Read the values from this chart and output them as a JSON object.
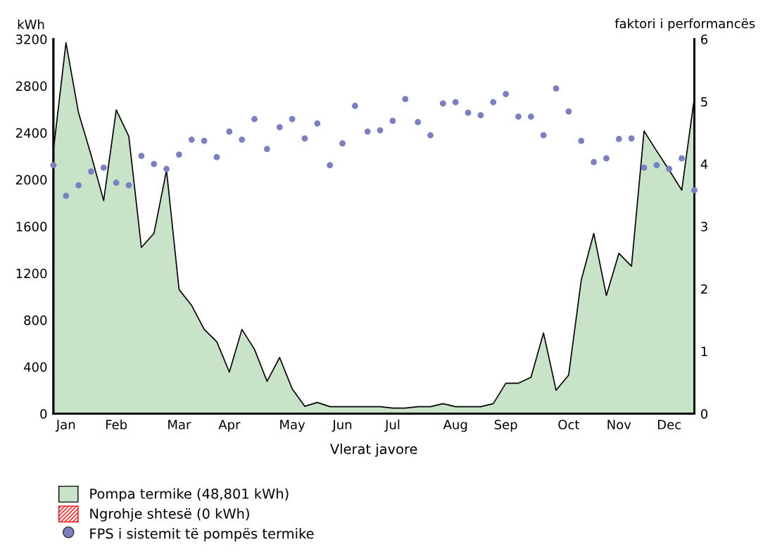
{
  "chart_data": {
    "type": "area",
    "xlabel": "Vlerat javore",
    "ylabel": "kWh",
    "y2label": "faktori i performancës",
    "categories": [
      null,
      "Jan",
      null,
      null,
      null,
      "Feb",
      null,
      null,
      null,
      null,
      "Mar",
      null,
      null,
      null,
      "Apr",
      null,
      null,
      null,
      null,
      "May",
      null,
      null,
      null,
      "Jun",
      null,
      null,
      null,
      "Jul",
      null,
      null,
      null,
      null,
      "Aug",
      null,
      null,
      null,
      "Sep",
      null,
      null,
      null,
      null,
      "Oct",
      null,
      null,
      null,
      "Nov",
      null,
      null,
      null,
      "Dec",
      null,
      null
    ],
    "ylim": [
      0,
      3200
    ],
    "yticks": [
      0,
      400,
      800,
      1200,
      1600,
      2000,
      2400,
      2800,
      3200
    ],
    "y2lim": [
      0,
      6
    ],
    "y2ticks": [
      0,
      1,
      2,
      3,
      4,
      5,
      6
    ],
    "legend": "bottom",
    "series": [
      {
        "name": "Pompa termike (48,801 kWh)",
        "color": "#c8e3c8",
        "values": [
          2250,
          3170,
          2570,
          2210,
          1820,
          2595,
          2370,
          1420,
          1540,
          2080,
          1060,
          925,
          720,
          615,
          355,
          720,
          550,
          276,
          480,
          212,
          63,
          96,
          60,
          60,
          60,
          60,
          60,
          48,
          48,
          60,
          60,
          85,
          60,
          60,
          60,
          85,
          260,
          260,
          310,
          690,
          200,
          330,
          1140,
          1540,
          1010,
          1370,
          1260,
          2415,
          2245,
          2080,
          1910,
          2700
        ]
      },
      {
        "name": "Ngrohje shtesë (0 kWh)",
        "color": "#ff0000",
        "values": [
          null,
          null,
          null,
          null,
          null,
          null,
          null,
          null,
          null,
          null,
          null,
          null,
          null,
          null,
          null,
          null,
          null,
          null,
          null,
          null,
          null,
          null,
          null,
          null,
          null,
          null,
          null,
          null,
          null,
          null,
          null,
          null,
          null,
          null,
          null,
          null,
          null,
          null,
          null,
          null,
          null,
          null,
          null,
          null,
          null,
          null,
          null,
          null,
          null,
          null,
          null,
          null
        ]
      },
      {
        "name": "FPS i sistemit të pompës termike",
        "type": "scatter",
        "axis": "y2",
        "marker": "circle",
        "color": "#7b7fc4",
        "values": [
          3.98,
          3.49,
          3.66,
          3.88,
          3.94,
          3.7,
          3.66,
          4.13,
          4.0,
          3.92,
          4.15,
          4.39,
          4.37,
          4.11,
          4.52,
          4.39,
          4.72,
          4.24,
          4.59,
          4.72,
          4.41,
          4.65,
          3.98,
          4.33,
          4.93,
          4.52,
          4.54,
          4.69,
          5.04,
          4.67,
          4.46,
          4.97,
          4.99,
          4.82,
          4.78,
          4.99,
          5.12,
          4.76,
          4.76,
          4.46,
          5.21,
          4.84,
          4.37,
          4.03,
          4.09,
          4.4,
          4.41,
          3.94,
          3.98,
          3.92,
          4.09,
          3.58
        ]
      }
    ]
  }
}
